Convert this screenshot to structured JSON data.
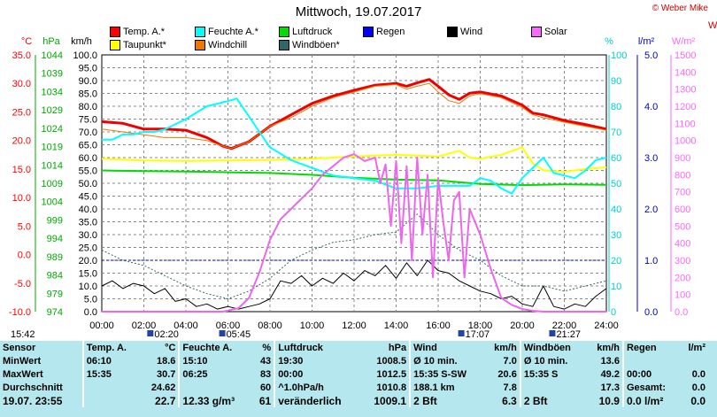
{
  "copyright": "© Weber Mike",
  "chart_data": {
    "type": "line",
    "title": "Mittwoch, 19.07.2017",
    "x_ticks": [
      "00:00",
      "02:00",
      "04:00",
      "06:00",
      "08:00",
      "10:00",
      "12:00",
      "14:00",
      "16:00",
      "18:00",
      "20:00",
      "22:00",
      "24:00"
    ],
    "x_range": [
      0,
      24
    ],
    "axes": {
      "temp": {
        "unit": "°C",
        "color": "#ff0000",
        "min": -10,
        "max": 35,
        "ticks": [
          "35.0",
          "30.0",
          "25.0",
          "20.0",
          "15.0",
          "10.0",
          "5.0",
          "0.0",
          "-5.0",
          "-10.0"
        ]
      },
      "pressure": {
        "unit": "hPa",
        "color": "#00aa00",
        "min": 974,
        "max": 1044,
        "ticks": [
          "1044",
          "1039",
          "1034",
          "1029",
          "1024",
          "1019",
          "1014",
          "1009",
          "1004",
          "999",
          "994",
          "989",
          "984",
          "979",
          "974"
        ]
      },
      "wind": {
        "unit": "km/h",
        "color": "#000000",
        "min": 0,
        "max": 100,
        "ticks": [
          "100.0",
          "95.0",
          "90.0",
          "85.0",
          "80.0",
          "75.0",
          "70.0",
          "65.0",
          "60.0",
          "55.0",
          "50.0",
          "45.0",
          "40.0",
          "35.0",
          "30.0",
          "25.0",
          "20.0",
          "15.0",
          "10.0",
          "5.0",
          "0.0"
        ]
      },
      "humidity": {
        "unit": "%",
        "color": "#00cccc",
        "min": 0,
        "max": 100,
        "ticks": [
          "100",
          "90",
          "80",
          "70",
          "60",
          "50",
          "40",
          "30",
          "20",
          "10",
          "0"
        ]
      },
      "rain": {
        "unit": "l/m²",
        "color": "#0000cc",
        "min": 0,
        "max": 5,
        "ticks": [
          "5.0",
          "4.0",
          "3.0",
          "2.0",
          "1.0",
          "0.0"
        ]
      },
      "solar": {
        "unit": "W/m²",
        "color": "#ff66ff",
        "min": 0,
        "max": 1500,
        "ticks": [
          "1500",
          "1400",
          "1300",
          "1200",
          "1100",
          "1000",
          "900",
          "800",
          "700",
          "600",
          "500",
          "400",
          "300",
          "200",
          "100",
          "0.0"
        ]
      }
    },
    "legend": [
      {
        "label": "Temp. A.*",
        "color": "#ff0000"
      },
      {
        "label": "Feuchte A.*",
        "color": "#00ffff"
      },
      {
        "label": "Luftdruck",
        "color": "#00dd00"
      },
      {
        "label": "Regen",
        "color": "#0000ff"
      },
      {
        "label": "Wind",
        "color": "#000000"
      },
      {
        "label": "Solar",
        "color": "#ff66ff"
      },
      {
        "label": "Taupunkt*",
        "color": "#ffff00"
      },
      {
        "label": "Windchill",
        "color": "#ee7700"
      },
      {
        "label": "Windböen*",
        "color": "#336666"
      }
    ],
    "series": [
      {
        "name": "Temp. A.*",
        "axis": "temp",
        "color": "#ee0000",
        "width": 3,
        "x": [
          0,
          1,
          2,
          3,
          4,
          5,
          5.75,
          6.17,
          7,
          8,
          9,
          10,
          11,
          12,
          13,
          14,
          14.5,
          15,
          15.58,
          16,
          16.5,
          17,
          17.5,
          18,
          19,
          20,
          20.5,
          21,
          22,
          23,
          24
        ],
        "y": [
          23.3,
          23.0,
          22.0,
          22.0,
          21.8,
          20.5,
          19.0,
          18.6,
          19.8,
          22.5,
          24.5,
          26.5,
          27.8,
          28.8,
          29.7,
          30.0,
          29.5,
          30.1,
          30.7,
          29.5,
          28.0,
          27.2,
          28.3,
          28.5,
          27.8,
          26.2,
          24.8,
          24.5,
          23.5,
          22.8,
          22.0
        ]
      },
      {
        "name": "Windchill",
        "axis": "temp",
        "color": "#ee7700",
        "width": 1,
        "x": [
          0,
          1,
          2,
          3,
          4,
          5,
          5.75,
          6.17,
          7,
          8,
          9,
          10,
          11,
          12,
          13,
          14,
          14.5,
          15,
          15.58,
          16,
          16.5,
          17,
          17.5,
          18,
          19,
          20,
          20.5,
          21,
          22,
          23,
          24
        ],
        "y": [
          22.0,
          21.5,
          21.0,
          20.5,
          20.5,
          20.0,
          19.0,
          18.6,
          19.8,
          22.5,
          24.0,
          26.0,
          27.5,
          28.5,
          29.5,
          29.8,
          29.0,
          29.5,
          30.0,
          28.5,
          27.0,
          26.5,
          27.8,
          28.2,
          27.5,
          25.8,
          24.5,
          24.0,
          23.2,
          22.5,
          21.8
        ]
      },
      {
        "name": "Taupunkt*",
        "axis": "temp",
        "color": "#ffff00",
        "width": 2,
        "x": [
          0,
          2,
          4,
          6,
          8,
          10,
          12,
          14,
          16,
          17,
          17.5,
          18,
          19,
          20,
          20.5,
          21,
          22,
          23,
          24
        ],
        "y": [
          16.8,
          16.5,
          16.4,
          16.5,
          16.6,
          16.8,
          17.2,
          17.5,
          17.2,
          18.2,
          17.0,
          16.8,
          17.5,
          18.8,
          16.0,
          14.8,
          14.5,
          15.0,
          15.3
        ]
      },
      {
        "name": "Luftdruck",
        "axis": "pressure",
        "color": "#00dd00",
        "width": 2,
        "x": [
          0,
          2,
          4,
          6,
          8,
          10,
          12,
          14,
          16,
          18,
          20,
          22,
          24
        ],
        "y": [
          1012.5,
          1012.3,
          1012.2,
          1012.0,
          1011.8,
          1011.3,
          1010.5,
          1010.0,
          1009.8,
          1008.8,
          1008.5,
          1008.7,
          1008.6
        ]
      },
      {
        "name": "Feuchte A.*",
        "axis": "humidity",
        "color": "#00ffff",
        "width": 2,
        "x": [
          0,
          0.5,
          1,
          1.5,
          2,
          2.5,
          3,
          4,
          5,
          6,
          6.42,
          7,
          7.5,
          8,
          9,
          10,
          11,
          12,
          13,
          14,
          15,
          16,
          17,
          17.5,
          18,
          18.5,
          19,
          19.5,
          20,
          20.5,
          21,
          21.5,
          22,
          22.5,
          23,
          23.5,
          24
        ],
        "y": [
          67,
          67,
          69,
          69,
          70,
          70,
          71,
          75,
          80,
          82,
          83,
          76,
          70,
          64,
          59,
          56,
          53,
          52,
          51,
          48,
          48,
          49,
          49,
          49,
          52,
          51,
          48,
          46,
          52,
          56,
          60,
          54,
          53,
          52,
          55,
          59,
          60
        ]
      },
      {
        "name": "Wind",
        "axis": "wind",
        "color": "#000000",
        "width": 1,
        "x": [
          0,
          0.5,
          1,
          1.5,
          2,
          2.5,
          3,
          3.5,
          4,
          4.5,
          5,
          5.5,
          6,
          6.5,
          7,
          7.5,
          8,
          8.5,
          9,
          9.5,
          10,
          10.5,
          11,
          11.5,
          12,
          12.5,
          13,
          13.5,
          14,
          14.5,
          15,
          15.5,
          16,
          16.5,
          17,
          17.5,
          18,
          18.5,
          19,
          19.5,
          20,
          20.5,
          21,
          21.5,
          22,
          22.5,
          23,
          23.5,
          24
        ],
        "y": [
          10,
          12,
          9,
          11,
          10,
          7,
          9,
          4,
          5,
          2,
          3,
          1,
          2,
          1,
          2,
          3,
          5,
          12,
          11,
          14,
          10,
          13,
          11,
          15,
          12,
          16,
          14,
          18,
          13,
          19,
          14,
          20,
          16,
          15,
          12,
          10,
          8,
          7,
          5,
          6,
          3,
          2,
          10,
          2,
          1,
          3,
          2,
          6,
          9
        ]
      },
      {
        "name": "Windböen*",
        "axis": "wind",
        "color": "#336666",
        "width": 1,
        "dash": "2,2",
        "x": [
          0,
          1,
          2,
          3,
          4,
          5,
          6,
          7,
          8,
          9,
          10,
          11,
          12,
          13,
          14,
          15,
          16,
          17,
          18,
          19,
          20,
          21,
          22,
          23,
          24
        ],
        "y": [
          24,
          20,
          18,
          14,
          10,
          7,
          5,
          8,
          13,
          20,
          24,
          27,
          28,
          30,
          31,
          38,
          30,
          24,
          20,
          14,
          10,
          10,
          8,
          10,
          12
        ]
      },
      {
        "name": "Solar",
        "axis": "solar",
        "color": "#ee66ee",
        "width": 2,
        "x": [
          0,
          5.75,
          6.5,
          7,
          7.5,
          8,
          8.5,
          9,
          9.5,
          10,
          10.5,
          11,
          11.5,
          12,
          12.5,
          13,
          13.25,
          13.5,
          13.75,
          14,
          14.25,
          14.5,
          14.75,
          15,
          15.25,
          15.5,
          15.75,
          16,
          16.25,
          16.5,
          16.75,
          17,
          17.25,
          17.5,
          18,
          18.5,
          19,
          19.5,
          20,
          20.5,
          21,
          21.5,
          22,
          24
        ],
        "y": [
          0,
          0,
          20,
          80,
          230,
          420,
          540,
          600,
          660,
          720,
          800,
          850,
          900,
          920,
          880,
          900,
          750,
          860,
          500,
          880,
          400,
          850,
          300,
          900,
          450,
          800,
          200,
          780,
          520,
          300,
          650,
          700,
          200,
          600,
          450,
          250,
          80,
          40,
          15,
          5,
          0,
          0,
          0,
          0
        ]
      }
    ],
    "events": [
      {
        "label": "02:20",
        "x": 2.33
      },
      {
        "label": "05:45",
        "x": 5.75
      },
      {
        "label": "17:07",
        "x": 17.12
      },
      {
        "label": "21:27",
        "x": 21.45
      }
    ],
    "bottom_left_label": "15:42",
    "right_edge_label": "W"
  },
  "table": {
    "headers": [
      "Sensor",
      "Temp. A.",
      "°C",
      "Feuchte A.",
      "%",
      "Luftdruck",
      "hPa",
      "Wind",
      "km/h",
      "Windböen",
      "km/h",
      "Regen",
      "l/m²"
    ],
    "rows": [
      [
        "MinWert",
        "06:10",
        "18.6",
        "15:10",
        "43",
        "19:30",
        "1008.5",
        "Ø 10 min.",
        "7.0",
        "Ø 10 min.",
        "13.6",
        "",
        ""
      ],
      [
        "MaxWert",
        "15:35",
        "30.7",
        "06:25",
        "83",
        "00:00",
        "1012.5",
        "15:35  S-SW",
        "20.6",
        "15:35  S",
        "49.2",
        "00:00",
        "0.0"
      ],
      [
        "Durchschnitt",
        "",
        "24.62",
        "",
        "60",
        "^1.0hPa/h",
        "1010.8",
        "188.1 km",
        "7.8",
        "",
        "17.3",
        "Gesamt:",
        "0.0"
      ],
      [
        "19.07. 23:55",
        "",
        "22.7",
        "12.33 g/m³",
        "61",
        "veränderlich",
        "1009.1",
        "2 Bft",
        "6.3",
        "2 Bft",
        "10.9",
        "0.0 l/m²",
        "0.0"
      ]
    ]
  }
}
